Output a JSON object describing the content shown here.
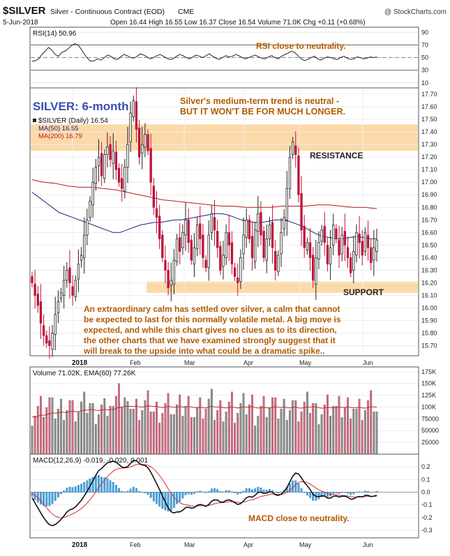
{
  "header": {
    "symbol": "$SILVER",
    "name": "Silver - Continuous Contract (EOD)",
    "exchange": "CME",
    "copyright": "@ StockCharts.com",
    "date": "5-Jun-2018",
    "ohlc": "Open 16.44  High 16.55  Low 16.37  Close 16.54  Volume 71.0K  Chg +0.11 (+0.68%)"
  },
  "rsi": {
    "label": "RSI(14) 50.96",
    "ticks": [
      "90",
      "70",
      "50",
      "30",
      "10"
    ],
    "annotation": "RSI close to neutrality.",
    "values": [
      44,
      45,
      48,
      55,
      60,
      66,
      62,
      55,
      52,
      58,
      60,
      64,
      69,
      72,
      70,
      63,
      55,
      48,
      44,
      45,
      48,
      46,
      50,
      54,
      52,
      48,
      47,
      51,
      55,
      53,
      50,
      49,
      52,
      56,
      54,
      51,
      48,
      50,
      53,
      55,
      52,
      49,
      47,
      48,
      52,
      55,
      53,
      50,
      48,
      51,
      54,
      52,
      50,
      53,
      56,
      52,
      49,
      47,
      50,
      53,
      51,
      52,
      55,
      53,
      50,
      48,
      50,
      52,
      54,
      51,
      49,
      48,
      51,
      53,
      50,
      48,
      52,
      55,
      57,
      60,
      58,
      53,
      48,
      45,
      47,
      50,
      52,
      48,
      46,
      49,
      51,
      50,
      48,
      47,
      50,
      52,
      49,
      47,
      48,
      51,
      50,
      48,
      49,
      51,
      50,
      51
    ]
  },
  "price": {
    "title": "SILVER: 6-month",
    "legend": [
      "$SILVER (Daily) 16.54",
      "MA(50) 16.55",
      "MA(200) 16.79"
    ],
    "ticks": [
      "17.70",
      "17.60",
      "17.50",
      "17.40",
      "17.30",
      "17.20",
      "17.10",
      "17.00",
      "16.90",
      "16.80",
      "16.70",
      "16.60",
      "16.50",
      "16.40",
      "16.30",
      "16.20",
      "16.10",
      "16.00",
      "15.90",
      "15.80",
      "15.70"
    ],
    "trend_line1": "Silver's medium-term trend is neutral -",
    "trend_line2": "BUT IT WON'T BE FOR MUCH LONGER.",
    "resistance_label": "RESISTANCE",
    "support_label": "SUPPORT",
    "commentary": [
      "An extraordinary calm has settled over silver, a calm that cannot",
      "be expected to last for this normally volatile metal. A big move is",
      "expected, and while this chart gives no clues as to its direction,",
      "the other charts that we have examined strongly suggest that it",
      "will break to the upside into what could be a dramatic spike.."
    ],
    "x_labels": [
      "2018",
      "Feb",
      "Mar",
      "Apr",
      "May",
      "Jun"
    ]
  },
  "volume": {
    "label": "Volume 71.02K, EMA(60) 77.26K",
    "ticks": [
      "175K",
      "150K",
      "125K",
      "100K",
      "75000",
      "50000",
      "25000"
    ]
  },
  "macd": {
    "label": "MACD(12,26,9) -0.019, -0.020, 0.001",
    "ticks": [
      "0.2",
      "0.1",
      "0.0",
      "-0.1",
      "-0.2",
      "-0.3"
    ],
    "annotation": "MACD close to neutrality.",
    "x_labels": [
      "2018",
      "Feb",
      "Mar",
      "Apr",
      "May",
      "Jun"
    ]
  },
  "colors": {
    "up": "#222222",
    "down": "#c0143c",
    "ma50": "#1a237e",
    "ma200": "#b71c1c",
    "band": "#fcd9a8",
    "annotation": "#b35a00",
    "title_blue": "#3d4db3",
    "hist": "#4aa3df"
  },
  "chart_data": {
    "type": "candlestick",
    "symbol": "$SILVER",
    "period": "daily",
    "price_range": [
      15.62,
      17.75
    ],
    "resistance_zone": [
      17.25,
      17.46
    ],
    "support_zone": [
      16.12,
      16.21
    ],
    "last": {
      "open": 16.44,
      "high": 16.55,
      "low": 16.37,
      "close": 16.54,
      "ma50": 16.55,
      "ma200": 16.79
    },
    "closes": [
      16.2,
      16.1,
      16.02,
      15.88,
      15.78,
      15.72,
      15.7,
      15.8,
      15.95,
      16.05,
      16.12,
      16.22,
      16.3,
      16.2,
      16.1,
      16.22,
      16.35,
      16.42,
      16.58,
      16.7,
      16.85,
      17.0,
      17.12,
      17.2,
      17.05,
      17.22,
      17.28,
      17.18,
      17.25,
      17.1,
      17.0,
      16.95,
      17.12,
      17.3,
      17.55,
      17.65,
      17.42,
      17.2,
      17.3,
      17.38,
      17.25,
      17.0,
      16.8,
      16.72,
      16.55,
      16.4,
      16.3,
      16.16,
      16.22,
      16.38,
      16.55,
      16.45,
      16.6,
      16.7,
      16.52,
      16.38,
      16.48,
      16.66,
      16.55,
      16.4,
      16.32,
      16.58,
      16.75,
      16.62,
      16.48,
      16.3,
      16.42,
      16.6,
      16.5,
      16.35,
      16.25,
      16.2,
      16.4,
      16.58,
      16.7,
      16.55,
      16.4,
      16.62,
      16.75,
      16.58,
      16.4,
      16.55,
      16.66,
      16.48,
      16.3,
      16.42,
      16.6,
      16.72,
      16.95,
      17.2,
      17.32,
      17.22,
      16.9,
      16.62,
      16.48,
      16.52,
      16.4,
      16.22,
      16.4,
      16.52,
      16.62,
      16.52,
      16.35,
      16.48,
      16.66,
      16.55,
      16.42,
      16.58,
      16.5,
      16.4,
      16.28,
      16.45,
      16.6,
      16.52,
      16.42,
      16.6,
      16.48,
      16.36,
      16.48,
      16.54
    ],
    "ma50": [
      16.92,
      16.88,
      16.84,
      16.8,
      16.76,
      16.74,
      16.72,
      16.7,
      16.68,
      16.66,
      16.64,
      16.62,
      16.6,
      16.6,
      16.62,
      16.64,
      16.66,
      16.67,
      16.68,
      16.68,
      16.69,
      16.7,
      16.7,
      16.71,
      16.72,
      16.73,
      16.74,
      16.75,
      16.75,
      16.74,
      16.72,
      16.7,
      16.69,
      16.68,
      16.68,
      16.69,
      16.7,
      16.7,
      16.69,
      16.67,
      16.65,
      16.62,
      16.59,
      16.57,
      16.56,
      16.55,
      16.55,
      16.56,
      16.57,
      16.56,
      16.55,
      16.55
    ],
    "ma200": [
      17.02,
      17.0,
      16.99,
      16.97,
      16.96,
      16.96,
      16.95,
      16.94,
      16.92,
      16.9,
      16.88,
      16.86,
      16.85,
      16.84,
      16.83,
      16.82,
      16.81,
      16.81,
      16.8,
      16.8,
      16.8,
      16.81,
      16.81,
      16.81,
      16.82,
      16.82,
      16.81,
      16.8,
      16.8,
      16.79
    ]
  }
}
